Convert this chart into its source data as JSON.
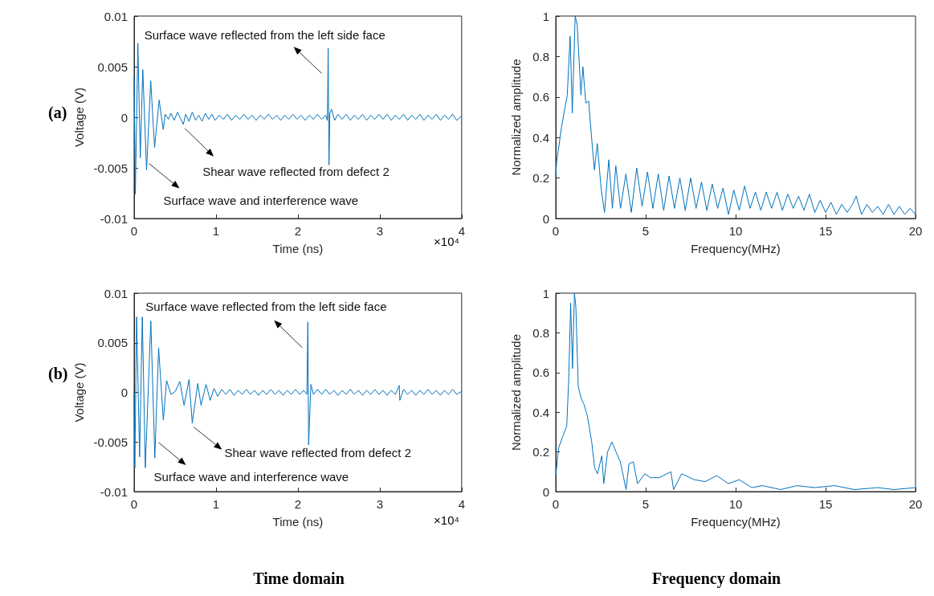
{
  "chart_data": [
    {
      "type": "line",
      "xlabel": "Time (ns)",
      "ylabel": "Voltage (V)",
      "xlim": [
        0,
        4
      ],
      "xticks": [
        0,
        1,
        2,
        3,
        4
      ],
      "ylim": [
        -0.01,
        0.01
      ],
      "yticks": [
        -0.01,
        -0.005,
        0,
        0.005,
        0.01
      ],
      "grid": false,
      "marker": "none",
      "line_style": "solid",
      "annotations": [
        "(a)",
        "×10⁴",
        {
          "text": "Surface wave reflected from the left side face",
          "x": 2.37,
          "y": 0.0068
        },
        {
          "text": "Shear wave reflected from defect 2",
          "x": 0.6,
          "y": -0.0007
        },
        {
          "text": "Surface wave and interference wave",
          "x": 0.152,
          "y": -0.0052
        }
      ],
      "series": [
        {
          "color": "#0072bd",
          "x": [
            0,
            0.015,
            0.046,
            0.075,
            0.106,
            0.152,
            0.203,
            0.25,
            0.306,
            0.355,
            0.38,
            0.42,
            0.45,
            0.49,
            0.53,
            0.57,
            0.6,
            0.63,
            0.67,
            0.71,
            0.75,
            0.79,
            0.83,
            0.87,
            0.91,
            0.95,
            0.99,
            1.04,
            1.09,
            1.14,
            1.19,
            1.24,
            1.29,
            1.34,
            1.39,
            1.44,
            1.49,
            1.54,
            1.59,
            1.64,
            1.69,
            1.74,
            1.79,
            1.84,
            1.89,
            1.94,
            1.99,
            2.04,
            2.09,
            2.14,
            2.19,
            2.24,
            2.29,
            2.34,
            2.36,
            2.37,
            2.38,
            2.39,
            2.41,
            2.45,
            2.49,
            2.54,
            2.59,
            2.64,
            2.69,
            2.74,
            2.79,
            2.84,
            2.89,
            2.94,
            2.99,
            3.04,
            3.09,
            3.14,
            3.19,
            3.24,
            3.29,
            3.34,
            3.39,
            3.44,
            3.49,
            3.54,
            3.59,
            3.64,
            3.69,
            3.74,
            3.79,
            3.84,
            3.89,
            3.94,
            4
          ],
          "values": [
            0.004,
            -0.0076,
            0.0073,
            -0.004,
            0.0047,
            -0.0052,
            0.0036,
            -0.003,
            0.0017,
            -0.0012,
            0.0003,
            -0.0002,
            0.0004,
            -0.0003,
            0.0005,
            -0.0002,
            -0.0007,
            0.0003,
            -0.0004,
            0.0005,
            -0.0003,
            0.0002,
            -0.0004,
            0.0004,
            -0.0002,
            0.0003,
            -0.0003,
            0.0002,
            -0.0002,
            0.0003,
            -0.0003,
            0.0002,
            -0.0002,
            0.0003,
            -0.0002,
            0.0002,
            -0.0003,
            0.0002,
            -0.0002,
            0.0003,
            -0.0002,
            0.0002,
            -0.0003,
            0.0002,
            -0.0002,
            0.0003,
            -0.0002,
            0.0002,
            -0.0003,
            0.0002,
            -0.0002,
            0.0003,
            -0.0002,
            0.0002,
            -0.0003,
            0.0068,
            -0.0047,
            0.0004,
            0.0008,
            -0.0003,
            0.0003,
            -0.0002,
            0.0003,
            -0.0003,
            0.0002,
            -0.0002,
            0.0003,
            -0.0003,
            0.0002,
            -0.0002,
            0.0003,
            -0.0002,
            0.0003,
            -0.0003,
            0.0002,
            -0.0002,
            0.0003,
            -0.0003,
            0.0002,
            -0.0002,
            0.0003,
            -0.0003,
            0.0002,
            -0.0002,
            0.0003,
            -0.0003,
            0.0002,
            -0.0002,
            0.0003,
            -0.0003,
            0.0001
          ]
        }
      ]
    },
    {
      "type": "line",
      "xlabel": "Frequency(MHz)",
      "ylabel": "Normalized amplitude",
      "xlim": [
        0,
        20
      ],
      "xticks": [
        0,
        5,
        10,
        15,
        20
      ],
      "ylim": [
        0,
        1
      ],
      "yticks": [
        0,
        0.2,
        0.4,
        0.6,
        0.8,
        1
      ],
      "grid": false,
      "marker": "none",
      "line_style": "solid",
      "series": [
        {
          "color": "#0072bd",
          "x": [
            0,
            0.05,
            0.32,
            0.64,
            0.8,
            0.92,
            1.08,
            1.19,
            1.4,
            1.51,
            1.67,
            1.83,
            2.0,
            2.15,
            2.31,
            2.52,
            2.71,
            2.95,
            3.15,
            3.34,
            3.6,
            3.9,
            4.2,
            4.5,
            4.8,
            5.1,
            5.4,
            5.7,
            6.0,
            6.3,
            6.6,
            6.9,
            7.2,
            7.5,
            7.8,
            8.1,
            8.4,
            8.7,
            9.0,
            9.3,
            9.6,
            9.9,
            10.2,
            10.5,
            10.8,
            11.1,
            11.4,
            11.7,
            12.0,
            12.3,
            12.6,
            12.9,
            13.2,
            13.5,
            13.8,
            14.1,
            14.4,
            14.7,
            15.0,
            15.3,
            15.6,
            15.9,
            16.2,
            16.5,
            16.7,
            17.0,
            17.3,
            17.6,
            17.9,
            18.2,
            18.5,
            18.8,
            19.1,
            19.4,
            19.7,
            20
          ],
          "values": [
            0.21,
            0.28,
            0.45,
            0.61,
            0.9,
            0.52,
            1,
            0.96,
            0.61,
            0.75,
            0.57,
            0.58,
            0.39,
            0.24,
            0.37,
            0.15,
            0.03,
            0.29,
            0.05,
            0.26,
            0.05,
            0.22,
            0.03,
            0.25,
            0.06,
            0.23,
            0.05,
            0.22,
            0.04,
            0.21,
            0.05,
            0.2,
            0.04,
            0.2,
            0.05,
            0.18,
            0.04,
            0.17,
            0.05,
            0.15,
            0.02,
            0.14,
            0.04,
            0.16,
            0.05,
            0.13,
            0.04,
            0.13,
            0.05,
            0.13,
            0.04,
            0.12,
            0.05,
            0.11,
            0.04,
            0.12,
            0.03,
            0.09,
            0.03,
            0.08,
            0.02,
            0.07,
            0.03,
            0.07,
            0.11,
            0.02,
            0.07,
            0.03,
            0.06,
            0.02,
            0.07,
            0.02,
            0.06,
            0.02,
            0.05,
            0.02
          ]
        }
      ]
    },
    {
      "type": "line",
      "xlabel": "Time (ns)",
      "ylabel": "Voltage (V)",
      "xlim": [
        0,
        4
      ],
      "xticks": [
        0,
        1,
        2,
        3,
        4
      ],
      "ylim": [
        -0.01,
        0.01
      ],
      "yticks": [
        -0.01,
        -0.005,
        0,
        0.005,
        0.01
      ],
      "grid": false,
      "marker": "none",
      "line_style": "solid",
      "annotations": [
        "(b)",
        "×10⁴",
        "Time domain",
        {
          "text": "Surface wave reflected from the left side face",
          "x": 2.122,
          "y": 0.0071
        },
        {
          "text": "Shear wave reflected from defect 2",
          "x": 0.71,
          "y": -0.0031
        },
        {
          "text": "Surface wave and interference wave",
          "x": 0.28,
          "y": -0.0049
        }
      ],
      "series": [
        {
          "color": "#0072bd",
          "x": [
            0,
            0.009,
            0.03,
            0.067,
            0.1,
            0.137,
            0.204,
            0.253,
            0.299,
            0.357,
            0.396,
            0.45,
            0.503,
            0.558,
            0.61,
            0.671,
            0.71,
            0.777,
            0.817,
            0.878,
            0.93,
            0.976,
            1.021,
            1.07,
            1.12,
            1.17,
            1.22,
            1.27,
            1.32,
            1.37,
            1.42,
            1.47,
            1.52,
            1.57,
            1.62,
            1.67,
            1.72,
            1.77,
            1.82,
            1.87,
            1.92,
            1.97,
            2.02,
            2.07,
            2.11,
            2.122,
            2.131,
            2.159,
            2.19,
            2.24,
            2.29,
            2.34,
            2.39,
            2.44,
            2.49,
            2.54,
            2.59,
            2.64,
            2.69,
            2.74,
            2.79,
            2.84,
            2.89,
            2.94,
            2.99,
            3.04,
            3.09,
            3.14,
            3.19,
            3.238,
            3.245,
            3.29,
            3.34,
            3.39,
            3.44,
            3.49,
            3.54,
            3.59,
            3.64,
            3.69,
            3.74,
            3.79,
            3.84,
            3.89,
            3.94,
            4
          ],
          "values": [
            0.0001,
            -0.0076,
            0.0076,
            -0.0065,
            0.0076,
            -0.0076,
            0.0072,
            -0.0066,
            0.0045,
            -0.0028,
            0.0012,
            -0.0002,
            0.0001,
            0.0011,
            -0.0013,
            0.0013,
            -0.0031,
            0.0009,
            -0.0013,
            0.0008,
            -0.0008,
            0.0004,
            -0.0004,
            0.0003,
            -0.0002,
            0.0003,
            -0.0003,
            0.0002,
            -0.0002,
            0.0003,
            -0.0002,
            0.0002,
            -0.0003,
            0.0002,
            -0.0002,
            0.0003,
            -0.0002,
            0.0002,
            -0.0003,
            0.0002,
            -0.0002,
            0.0003,
            -0.0002,
            0.0002,
            -0.0002,
            0.0071,
            -0.0053,
            0.0008,
            -0.0002,
            0.0003,
            -0.0002,
            0.0003,
            -0.0002,
            0.0002,
            -0.0003,
            0.0002,
            -0.0002,
            0.0003,
            -0.0002,
            0.0002,
            -0.0003,
            0.0002,
            -0.0002,
            0.0003,
            -0.0002,
            0.0002,
            -0.0003,
            0.0002,
            -0.0002,
            0.0007,
            -0.0008,
            0.0003,
            -0.0002,
            0.0002,
            -0.0003,
            0.0002,
            -0.0002,
            0.0003,
            -0.0002,
            0.0002,
            -0.0003,
            0.0002,
            -0.0002,
            0.0003,
            -0.0002,
            0.0001
          ]
        }
      ]
    },
    {
      "type": "line",
      "xlabel": "Frequency(MHz)",
      "ylabel": "Normalized amplitude",
      "xlim": [
        0,
        20
      ],
      "xticks": [
        0,
        5,
        10,
        15,
        20
      ],
      "ylim": [
        0,
        1
      ],
      "yticks": [
        0,
        0.2,
        0.4,
        0.6,
        0.8,
        1
      ],
      "grid": false,
      "marker": "none",
      "line_style": "solid",
      "annotations": [
        "Frequency domain"
      ],
      "series": [
        {
          "color": "#0072bd",
          "x": [
            0,
            0.16,
            0.4,
            0.61,
            0.72,
            0.83,
            0.93,
            1.04,
            1.12,
            1.25,
            1.41,
            1.57,
            1.76,
            2.0,
            2.16,
            2.32,
            2.56,
            2.67,
            2.88,
            3.12,
            3.35,
            3.59,
            3.91,
            4.07,
            4.31,
            4.55,
            4.95,
            5.27,
            5.75,
            6.4,
            6.55,
            7.0,
            7.7,
            8.3,
            8.95,
            9.6,
            10.2,
            10.9,
            11.5,
            12.5,
            13.4,
            14.4,
            15.5,
            16.6,
            17.9,
            18.8,
            20
          ],
          "values": [
            0.08,
            0.22,
            0.28,
            0.33,
            0.56,
            0.95,
            0.62,
            1,
            0.93,
            0.53,
            0.47,
            0.44,
            0.38,
            0.25,
            0.12,
            0.09,
            0.18,
            0.04,
            0.2,
            0.25,
            0.2,
            0.15,
            0.01,
            0.14,
            0.15,
            0.04,
            0.09,
            0.07,
            0.07,
            0.1,
            0.01,
            0.09,
            0.06,
            0.05,
            0.08,
            0.04,
            0.06,
            0.02,
            0.03,
            0.01,
            0.03,
            0.02,
            0.03,
            0.01,
            0.02,
            0.01,
            0.02
          ]
        }
      ]
    }
  ]
}
